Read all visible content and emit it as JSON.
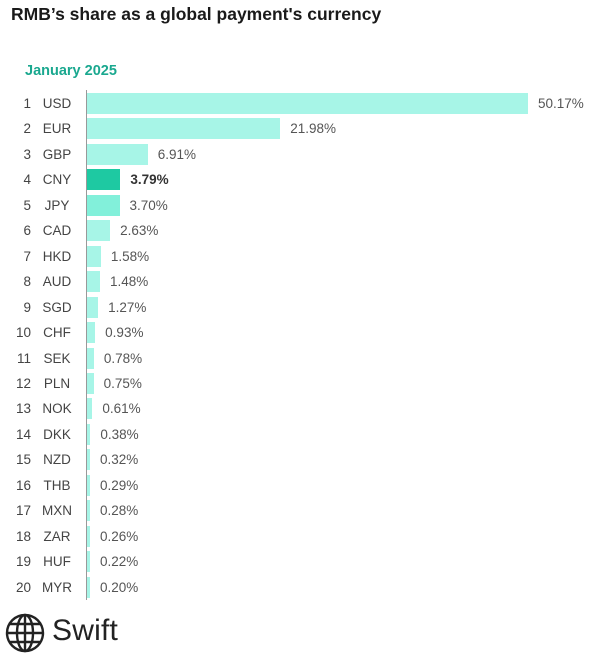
{
  "title": "RMB’s share as a global payment's currency",
  "chart_data": {
    "type": "bar",
    "orientation": "horizontal",
    "subtitle": "January 2025",
    "highlight": "CNY",
    "categories": [
      "USD",
      "EUR",
      "GBP",
      "CNY",
      "JPY",
      "CAD",
      "HKD",
      "AUD",
      "SGD",
      "CHF",
      "SEK",
      "PLN",
      "NOK",
      "DKK",
      "NZD",
      "THB",
      "MXN",
      "ZAR",
      "HUF",
      "MYR"
    ],
    "ranks": [
      "1",
      "2",
      "3",
      "4",
      "5",
      "6",
      "7",
      "8",
      "9",
      "10",
      "11",
      "12",
      "13",
      "14",
      "15",
      "16",
      "17",
      "18",
      "19",
      "20"
    ],
    "values": [
      50.17,
      21.98,
      6.91,
      3.79,
      3.7,
      2.63,
      1.58,
      1.48,
      1.27,
      0.93,
      0.78,
      0.75,
      0.61,
      0.38,
      0.32,
      0.29,
      0.28,
      0.26,
      0.22,
      0.2
    ],
    "value_labels": [
      "50.17%",
      "21.98%",
      "6.91%",
      "3.79%",
      "3.70%",
      "2.63%",
      "1.58%",
      "1.48%",
      "1.27%",
      "0.93%",
      "0.78%",
      "0.75%",
      "0.61%",
      "0.38%",
      "0.32%",
      "0.29%",
      "0.28%",
      "0.26%",
      "0.22%",
      "0.20%"
    ],
    "colors": {
      "bar": "#a7f5e7",
      "bar_jpy": "#82f0da",
      "highlight": "#1ec9a2",
      "axis": "#999999"
    }
  },
  "logo": {
    "text": "Swift",
    "icon": "globe-icon"
  }
}
